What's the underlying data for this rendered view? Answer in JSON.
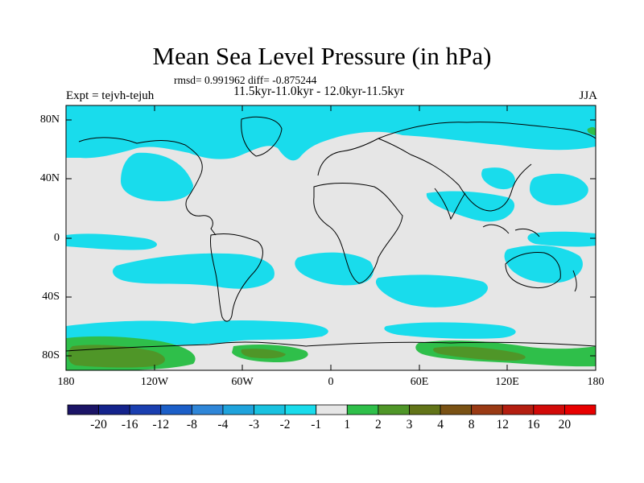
{
  "title": "Mean Sea Level Pressure (in hPa)",
  "stats_line": "rmsd= 0.991962 diff= -0.875244",
  "period_line": "11.5kyr-11.0kyr - 12.0kyr-11.5kyr",
  "experiment_label": "Expt = tejvh-tejuh",
  "season": "JJA",
  "lat_ticks": [
    "80N",
    "40N",
    "0",
    "40S",
    "80S"
  ],
  "lon_ticks": [
    "180",
    "120W",
    "60W",
    "0",
    "60E",
    "120E",
    "180"
  ],
  "colorbar": {
    "labels": [
      "-20",
      "-16",
      "-12",
      "-8",
      "-4",
      "-3",
      "-2",
      "-1",
      "1",
      "2",
      "3",
      "4",
      "8",
      "12",
      "16",
      "20"
    ],
    "colors": [
      "#1b1466",
      "#14238c",
      "#1a3fb0",
      "#1c5fc8",
      "#2f86d8",
      "#1fa3dc",
      "#19c2e0",
      "#19dcec",
      "#e6e6e6",
      "#2fbf4a",
      "#4f9628",
      "#627418",
      "#7a5214",
      "#9a3a14",
      "#b41e10",
      "#d20a08",
      "#e80000"
    ]
  },
  "colors": {
    "neutral": "#e6e6e6",
    "negative_1_2": "#19dcec",
    "positive_1_2": "#2fbf4a",
    "positive_2_4": "#4f9628"
  }
}
